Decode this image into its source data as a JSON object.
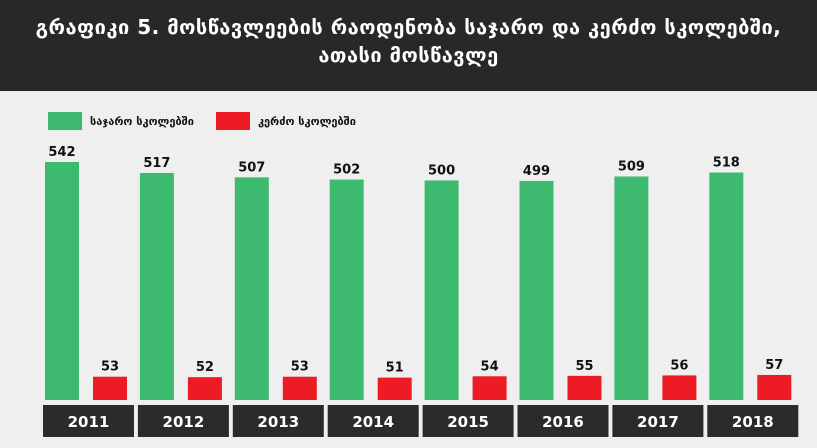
{
  "title": {
    "line1": "გრაფიკი 5. მოსწავლეების რაოდენობა საჯარო და კერძო სკოლებში,",
    "line2": "ათასი მოსწავლე"
  },
  "colors": {
    "header_bg": "#282828",
    "public": "#3dba6f",
    "private": "#ed1c24",
    "year_box": "#2b2b2b",
    "background": "#efefef"
  },
  "chart_data": {
    "type": "bar",
    "categories": [
      "2011",
      "2012",
      "2013",
      "2014",
      "2015",
      "2016",
      "2017",
      "2018"
    ],
    "series": [
      {
        "name": "საჯარო სკოლებში",
        "color": "#3dba6f",
        "values": [
          542,
          517,
          507,
          502,
          500,
          499,
          509,
          518
        ]
      },
      {
        "name": "კერძო სკოლებში",
        "color": "#ed1c24",
        "values": [
          53,
          52,
          53,
          51,
          54,
          55,
          56,
          57
        ]
      }
    ],
    "ylim": [
      0,
      542
    ],
    "grid": false,
    "legend_position": "top-left"
  }
}
